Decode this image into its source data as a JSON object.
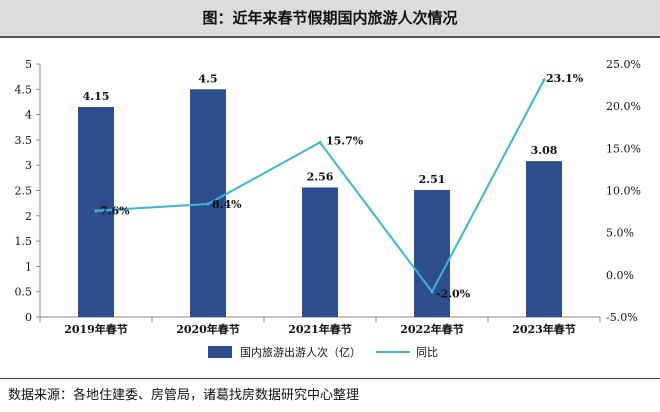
{
  "title": "图：近年来春节假期国内旅游人次情况",
  "source": "数据来源：各地住建委、房管局，诸葛找房数据研究中心整理",
  "chart_data": {
    "type": "bar",
    "categories": [
      "2019年春节",
      "2020年春节",
      "2021年春节",
      "2022年春节",
      "2023年春节"
    ],
    "series": [
      {
        "name": "国内旅游出游人次（亿）",
        "type": "bar",
        "axis": "left",
        "values": [
          4.15,
          4.5,
          2.56,
          2.51,
          3.08
        ],
        "labels": [
          "4.15",
          "4.5",
          "2.56",
          "2.51",
          "3.08"
        ],
        "color": "#2e4d8c"
      },
      {
        "name": "同比",
        "type": "line",
        "axis": "right",
        "values": [
          7.6,
          8.4,
          15.7,
          -2.0,
          23.1
        ],
        "labels": [
          "7.6%",
          "8.4%",
          "15.7%",
          "-2.0%",
          "23.1%"
        ],
        "color": "#38b6d8"
      }
    ],
    "left_axis": {
      "min": 0,
      "max": 5,
      "ticks": [
        "0",
        "0.5",
        "1",
        "1.5",
        "2",
        "2.5",
        "3",
        "3.5",
        "4",
        "4.5",
        "5"
      ]
    },
    "right_axis": {
      "min": -5,
      "max": 25,
      "ticks": [
        "-5.0%",
        "0.0%",
        "5.0%",
        "10.0%",
        "15.0%",
        "20.0%",
        "25.0%"
      ]
    },
    "legend_position": "bottom",
    "grid": false
  }
}
